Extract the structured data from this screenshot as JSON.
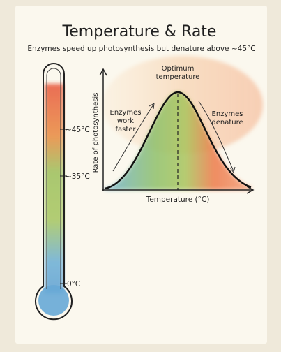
{
  "header": {
    "title": "Temperature & Rate",
    "subtitle": "Enzymes speed up photosynthesis but denature above ~45°C"
  },
  "thermometer": {
    "labels": [
      "~45°C",
      "~35°C",
      "0°C"
    ]
  },
  "graph": {
    "y_axis_label": "Rate of photosynthesis",
    "x_axis_label": "Temperature (°C)",
    "optimum_label": [
      "Optimum",
      "temperature"
    ],
    "rising_label": [
      "Enzymes",
      "work",
      "faster"
    ],
    "falling_label": [
      "Enzymes",
      "denature"
    ]
  }
}
